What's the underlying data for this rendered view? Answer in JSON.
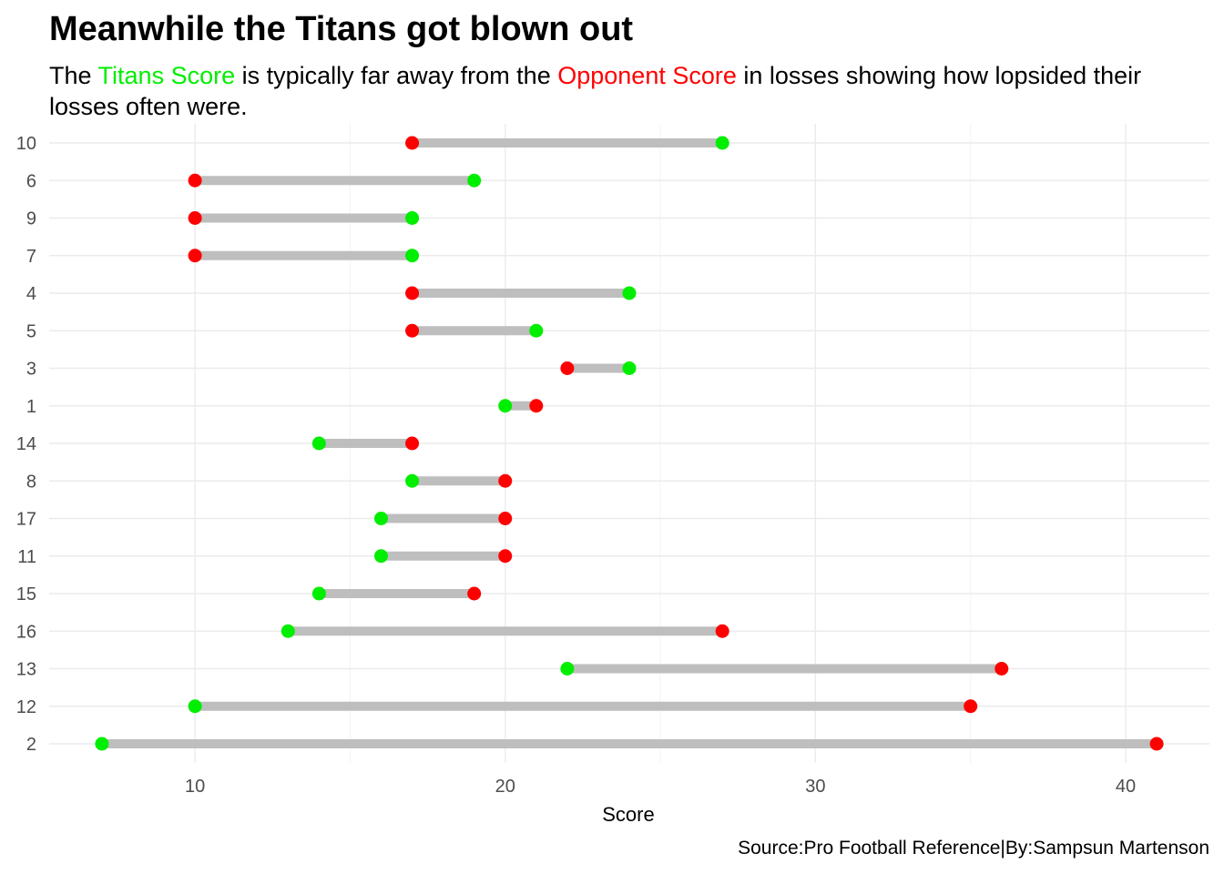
{
  "title": "Meanwhile the Titans got blown out",
  "subtitle": {
    "part1": "The ",
    "titans_label": "Titans Score",
    "part2": " is typically far away from the ",
    "opponent_label": "Opponent Score",
    "part3": " in losses showing how lopsided their losses often were."
  },
  "caption": "Source:Pro Football Reference|By:Sampsun Martenson",
  "colors": {
    "titans": "#00ee00",
    "opponent": "#ff0000",
    "segment": "#bebebe",
    "grid_major": "#ebebeb",
    "grid_minor": "#f3f3f3"
  },
  "chart_data": {
    "type": "dumbbell",
    "xlabel": "Score",
    "ylabel": "",
    "xlim": [
      5.3,
      42.7
    ],
    "x_ticks": [
      10,
      20,
      30,
      40
    ],
    "grid": true,
    "series": [
      {
        "name": "Titans Score",
        "color": "#00ee00"
      },
      {
        "name": "Opponent Score",
        "color": "#ff0000"
      }
    ],
    "games": [
      {
        "week": "10",
        "titans": 27,
        "opponent": 17
      },
      {
        "week": "6",
        "titans": 19,
        "opponent": 10
      },
      {
        "week": "9",
        "titans": 17,
        "opponent": 10
      },
      {
        "week": "7",
        "titans": 17,
        "opponent": 10
      },
      {
        "week": "4",
        "titans": 24,
        "opponent": 17
      },
      {
        "week": "5",
        "titans": 21,
        "opponent": 17
      },
      {
        "week": "3",
        "titans": 24,
        "opponent": 22
      },
      {
        "week": "1",
        "titans": 20,
        "opponent": 21
      },
      {
        "week": "14",
        "titans": 14,
        "opponent": 17
      },
      {
        "week": "8",
        "titans": 17,
        "opponent": 20
      },
      {
        "week": "17",
        "titans": 16,
        "opponent": 20
      },
      {
        "week": "11",
        "titans": 16,
        "opponent": 20
      },
      {
        "week": "15",
        "titans": 14,
        "opponent": 19
      },
      {
        "week": "16",
        "titans": 13,
        "opponent": 27
      },
      {
        "week": "13",
        "titans": 22,
        "opponent": 36
      },
      {
        "week": "12",
        "titans": 10,
        "opponent": 35
      },
      {
        "week": "2",
        "titans": 7,
        "opponent": 41
      }
    ]
  }
}
